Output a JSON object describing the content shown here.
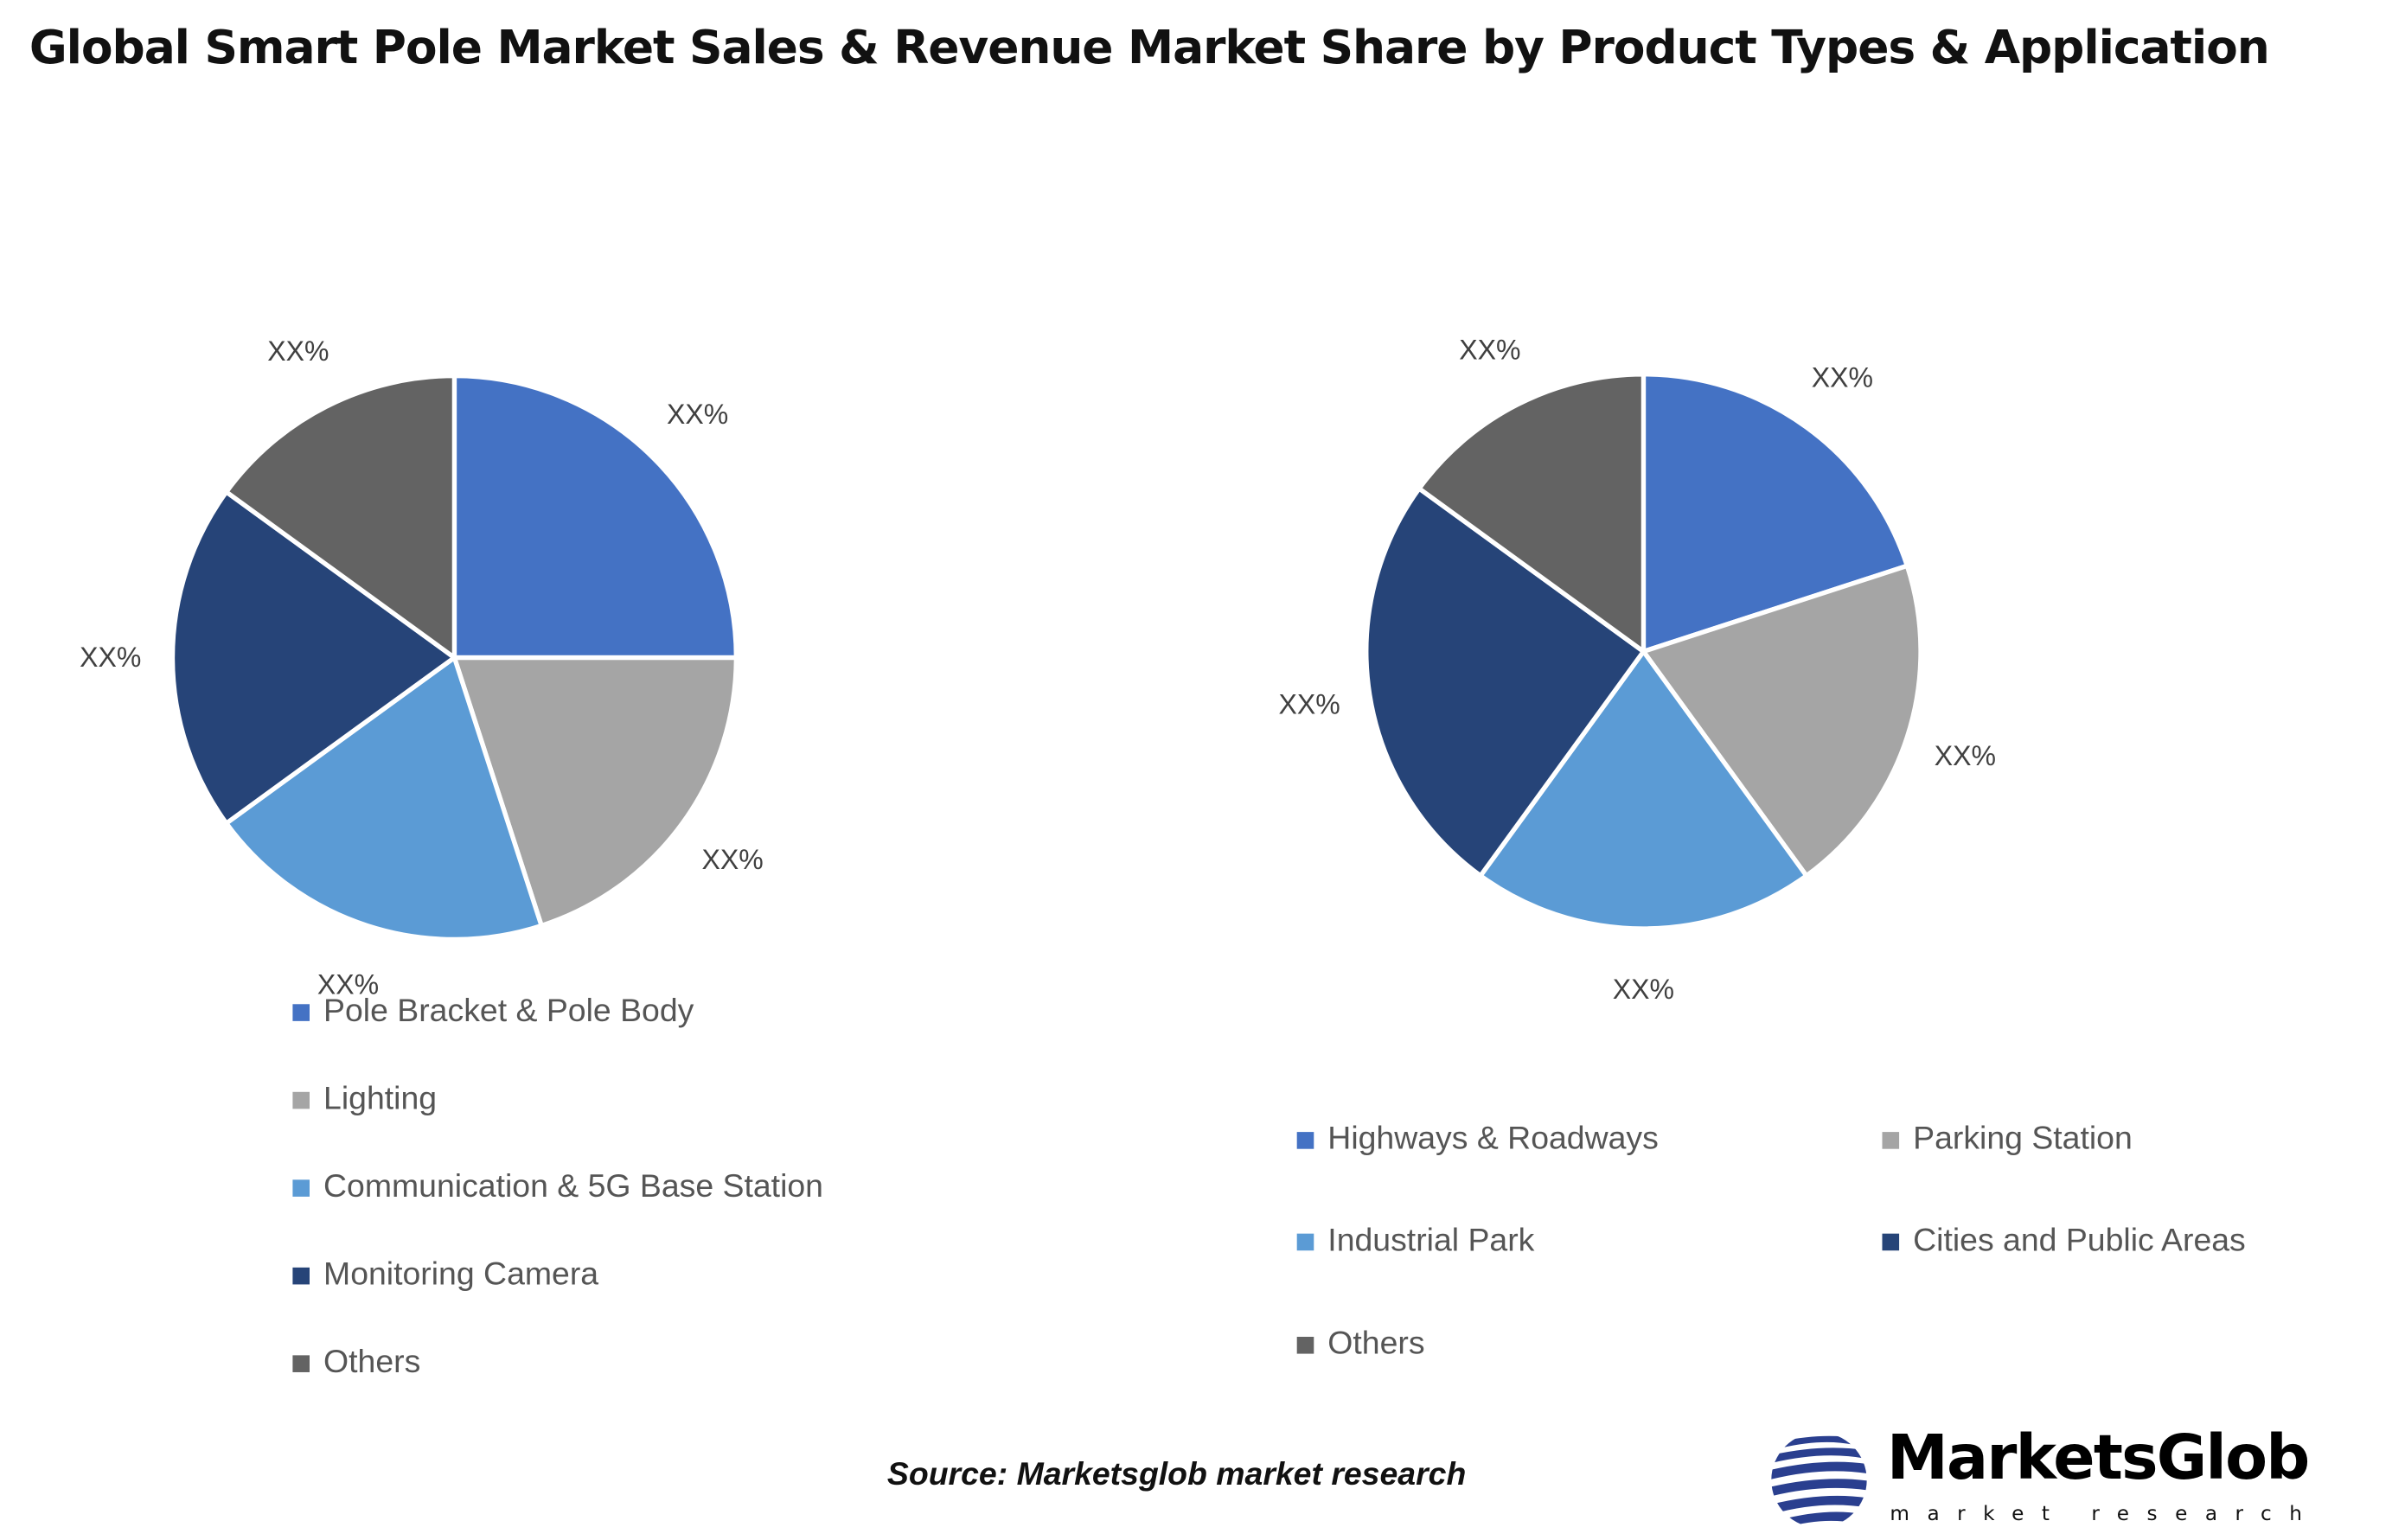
{
  "title": "Global Smart Pole Market Sales & Revenue Market Share by Product Types & Application",
  "chart_data": [
    {
      "type": "pie",
      "categories": [
        "Pole Bracket & Pole Body",
        "Lighting",
        "Communication & 5G Base Station",
        "Monitoring Camera",
        "Others"
      ],
      "values": [
        25,
        20,
        20,
        20,
        15
      ],
      "data_labels": [
        "XX%",
        "XX%",
        "XX%",
        "XX%",
        "XX%"
      ],
      "colors": [
        "#4472C4",
        "#A5A5A5",
        "#5B9BD5",
        "#264478",
        "#636363"
      ],
      "legend_position": "bottom"
    },
    {
      "type": "pie",
      "categories": [
        "Highways & Roadways",
        "Parking Station",
        "Industrial Park",
        "Cities and Public Areas",
        "Others"
      ],
      "values": [
        20,
        20,
        20,
        25,
        15
      ],
      "data_labels": [
        "XX%",
        "XX%",
        "XX%",
        "XX%",
        "XX%"
      ],
      "colors": [
        "#4472C4",
        "#A5A5A5",
        "#5B9BD5",
        "#264478",
        "#636363"
      ],
      "legend_position": "bottom"
    }
  ],
  "source": "Source: Marketsglob market research",
  "logo": {
    "name": "MarketsGlob",
    "tagline": "market research"
  }
}
